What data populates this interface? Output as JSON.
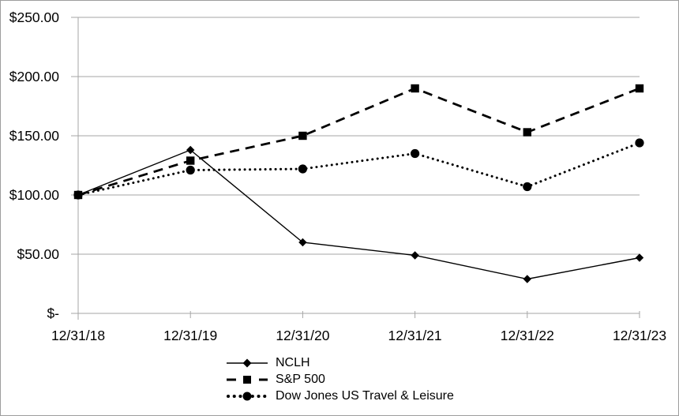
{
  "chart_data": {
    "type": "line",
    "title": "",
    "categories": [
      "12/31/18",
      "12/31/19",
      "12/31/20",
      "12/31/21",
      "12/31/22",
      "12/31/23"
    ],
    "series": [
      {
        "name": "NCLH",
        "marker": "diamond",
        "line_style": "solid",
        "values": [
          100,
          138,
          60,
          49,
          29,
          47
        ]
      },
      {
        "name": "S&P 500",
        "marker": "square",
        "line_style": "dashed",
        "values": [
          100,
          129,
          150,
          190,
          153,
          190
        ]
      },
      {
        "name": "Dow Jones US Travel & Leisure",
        "marker": "circle",
        "line_style": "dotted",
        "values": [
          100,
          121,
          122,
          135,
          107,
          144
        ]
      }
    ],
    "y_ticks": [
      {
        "value": 250,
        "label": "$250.00"
      },
      {
        "value": 200,
        "label": "$200.00"
      },
      {
        "value": 150,
        "label": "$150.00"
      },
      {
        "value": 100,
        "label": "$100.00"
      },
      {
        "value": 50,
        "label": "$50.00"
      },
      {
        "value": 0,
        "label": "$-"
      }
    ],
    "ylim": [
      0,
      250
    ],
    "grid": "horizontal-only",
    "legend_position": "bottom-center",
    "colors": {
      "series": "#000000",
      "gridline": "#a6a6a6",
      "axis": "#a6a6a6",
      "background": "#ffffff",
      "frame_border": "#9e9e9e"
    }
  }
}
